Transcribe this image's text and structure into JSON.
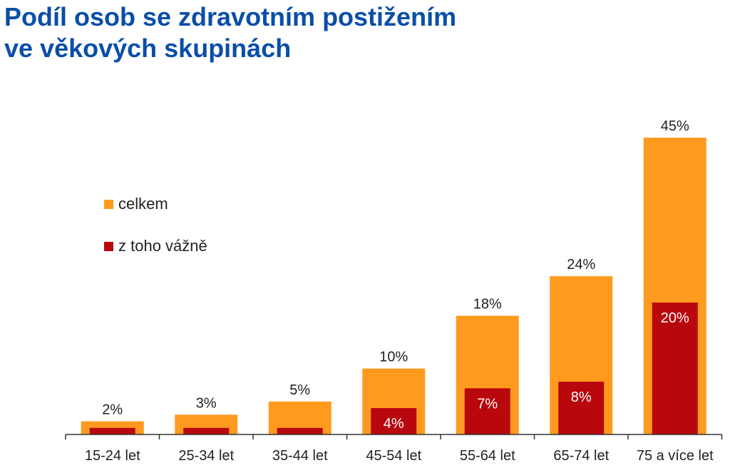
{
  "title_lines": [
    "Podíl osob se zdravotním postižením",
    "ve věkových skupinách"
  ],
  "colors": {
    "title": "#0a4ea8",
    "total": "#ff9a1f",
    "severe": "#b8070d",
    "axis": "#333333",
    "text": "#222222"
  },
  "chart_data": {
    "type": "bar",
    "title": "Podíl osob se zdravotním postižením ve věkových skupinách",
    "categories": [
      "15-24 let",
      "25-34 let",
      "35-44 let",
      "45-54 let",
      "55-64 let",
      "65-74 let",
      "75 a více let"
    ],
    "series": [
      {
        "name": "celkem",
        "values": [
          2,
          3,
          5,
          10,
          18,
          24,
          45
        ],
        "labels": [
          "2%",
          "3%",
          "5%",
          "10%",
          "18%",
          "24%",
          "45%"
        ]
      },
      {
        "name": "z toho vážně",
        "values": [
          1,
          1,
          1,
          4,
          7,
          8,
          20
        ],
        "labels": [
          "",
          "",
          "",
          "4%",
          "7%",
          "8%",
          "20%"
        ]
      }
    ],
    "ylim": [
      0,
      45
    ],
    "legend": "left",
    "grid": false,
    "xlabel": "",
    "ylabel": ""
  }
}
